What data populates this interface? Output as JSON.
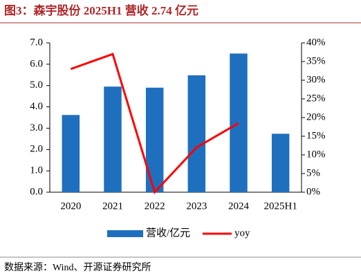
{
  "chart_data": {
    "type": "bar-line",
    "title": "图3：森宇股份 2025H1 营收 2.74 亿元",
    "source": "数据来源：Wind、开源证券研究所",
    "categories": [
      "2020",
      "2021",
      "2022",
      "2023",
      "2024",
      "2025H1"
    ],
    "series": [
      {
        "name": "营收/亿元",
        "type": "bar",
        "color": "#1f6fbf",
        "values": [
          3.62,
          4.95,
          4.9,
          5.48,
          6.5,
          2.74
        ]
      },
      {
        "name": "yoy",
        "type": "line",
        "axis": "y2",
        "color": "#ff0000",
        "values": [
          33,
          37,
          0,
          12,
          18.5,
          null
        ]
      }
    ],
    "ylim": [
      0,
      7
    ],
    "yticks": [
      {
        "value": 0,
        "label": "0.0"
      },
      {
        "value": 1,
        "label": "1.0"
      },
      {
        "value": 2,
        "label": "2.0"
      },
      {
        "value": 3,
        "label": "3.0"
      },
      {
        "value": 4,
        "label": "4.0"
      },
      {
        "value": 5,
        "label": "5.0"
      },
      {
        "value": 6,
        "label": "6.0"
      },
      {
        "value": 7,
        "label": "7.0"
      }
    ],
    "y2lim": [
      0,
      40
    ],
    "y2ticks": [
      {
        "value": 0,
        "label": "0%"
      },
      {
        "value": 5,
        "label": "5%"
      },
      {
        "value": 10,
        "label": "10%"
      },
      {
        "value": 15,
        "label": "15%"
      },
      {
        "value": 20,
        "label": "20%"
      },
      {
        "value": 25,
        "label": "25%"
      },
      {
        "value": 30,
        "label": "30%"
      },
      {
        "value": 35,
        "label": "35%"
      },
      {
        "value": 40,
        "label": "40%"
      }
    ]
  }
}
